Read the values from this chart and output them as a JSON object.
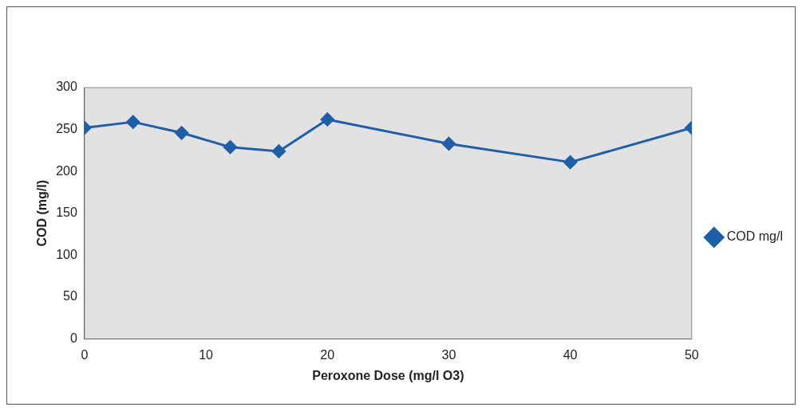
{
  "chart_data": {
    "type": "line",
    "xlabel": "Peroxone Dose (mg/l O3)",
    "ylabel": "COD (mg/l)",
    "x": [
      0,
      4,
      8,
      12,
      16,
      20,
      30,
      40,
      50
    ],
    "series": [
      {
        "name": "COD mg/l",
        "color": "#1f5fa8",
        "values": [
          252,
          259,
          246,
          229,
          224,
          262,
          233,
          211,
          252
        ]
      }
    ],
    "xlim": [
      0,
      50
    ],
    "xticks": [
      0,
      10,
      20,
      30,
      40,
      50
    ],
    "ylim": [
      0,
      300
    ],
    "yticks": [
      0,
      50,
      100,
      150,
      200,
      250,
      300
    ],
    "grid": false,
    "legend": "right",
    "marker": "diamond",
    "line_style": "solid"
  }
}
